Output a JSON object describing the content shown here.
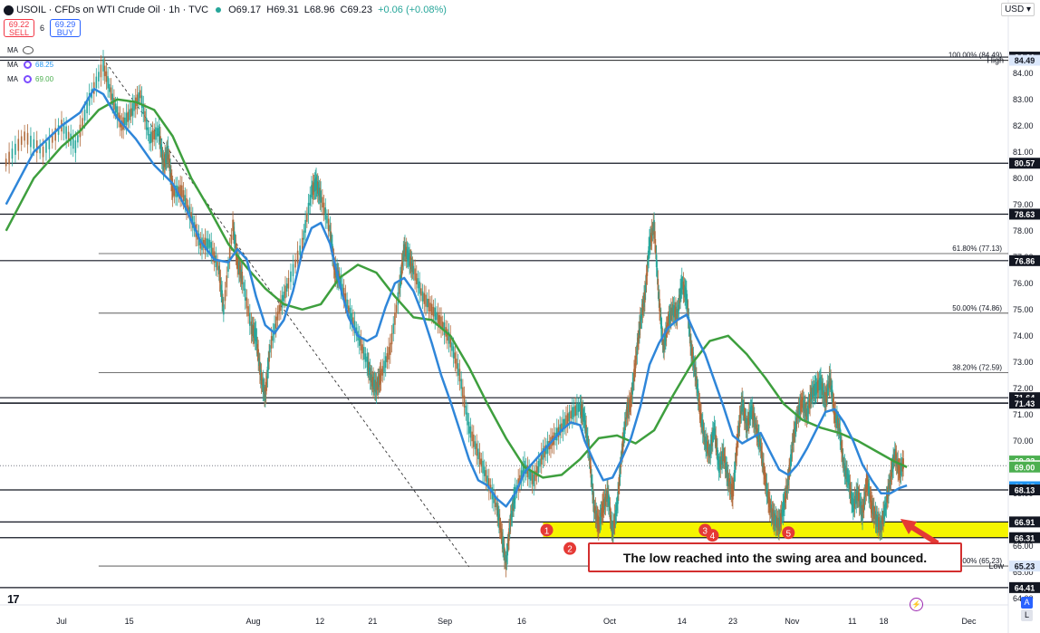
{
  "header": {
    "symbol": "USOIL · CFDs on WTI Crude Oil · 1h · TVC",
    "open": "O69.17",
    "high": "H69.31",
    "low": "L68.96",
    "close": "C69.23",
    "change": "+0.06 (+0.08%)"
  },
  "trade": {
    "sell_price": "69.22",
    "sell_label": "SELL",
    "spread": "6",
    "buy_price": "69.29",
    "buy_label": "BUY"
  },
  "indicators": [
    {
      "label": "MA",
      "value": ""
    },
    {
      "label": "MA",
      "value": "68.25",
      "color": "#2196f3"
    },
    {
      "label": "MA",
      "value": "69.00",
      "color": "#4caf50"
    }
  ],
  "currency": "USD",
  "callout": "The low reached into the swing area and bounced.",
  "tv_logo": "17",
  "auto_button": "A",
  "log_button": "L",
  "chart_data": {
    "type": "line",
    "ylim": [
      63.75,
      85.75
    ],
    "y_ticks": [
      64.0,
      65.0,
      66.0,
      67.0,
      68.0,
      69.0,
      70.0,
      71.0,
      72.0,
      73.0,
      74.0,
      75.0,
      76.0,
      77.0,
      78.0,
      79.0,
      80.0,
      81.0,
      82.0,
      83.0,
      84.0
    ],
    "x_ticks": [
      {
        "label": "Jul",
        "x": 0.0
      },
      {
        "label": "15",
        "x": 0.073
      },
      {
        "label": "Aug",
        "x": 0.207
      },
      {
        "label": "12",
        "x": 0.279
      },
      {
        "label": "21",
        "x": 0.336
      },
      {
        "label": "Sep",
        "x": 0.414
      },
      {
        "label": "16",
        "x": 0.497
      },
      {
        "label": "Oct",
        "x": 0.592
      },
      {
        "label": "14",
        "x": 0.67
      },
      {
        "label": "23",
        "x": 0.725
      },
      {
        "label": "Nov",
        "x": 0.789
      },
      {
        "label": "11",
        "x": 0.854
      },
      {
        "label": "18",
        "x": 0.888
      },
      {
        "label": "Dec",
        "x": 0.98
      }
    ],
    "price": [
      [
        -0.06,
        80.6
      ],
      [
        -0.04,
        81.6
      ],
      [
        -0.02,
        81.0
      ],
      [
        0.0,
        82.0
      ],
      [
        0.015,
        81.2
      ],
      [
        0.03,
        83.0
      ],
      [
        0.045,
        84.3
      ],
      [
        0.055,
        83.0
      ],
      [
        0.065,
        82.0
      ],
      [
        0.075,
        82.5
      ],
      [
        0.085,
        83.2
      ],
      [
        0.095,
        81.5
      ],
      [
        0.105,
        81.8
      ],
      [
        0.11,
        80.5
      ],
      [
        0.115,
        81.0
      ],
      [
        0.12,
        79.5
      ],
      [
        0.13,
        79.5
      ],
      [
        0.14,
        78.5
      ],
      [
        0.15,
        77.5
      ],
      [
        0.16,
        77.5
      ],
      [
        0.17,
        76.5
      ],
      [
        0.175,
        75.0
      ],
      [
        0.185,
        78.2
      ],
      [
        0.19,
        76.8
      ],
      [
        0.195,
        76.2
      ],
      [
        0.205,
        74.3
      ],
      [
        0.21,
        74.0
      ],
      [
        0.215,
        72.5
      ],
      [
        0.22,
        71.7
      ],
      [
        0.225,
        73.5
      ],
      [
        0.235,
        75.0
      ],
      [
        0.245,
        76.0
      ],
      [
        0.26,
        77.5
      ],
      [
        0.27,
        79.5
      ],
      [
        0.275,
        79.8
      ],
      [
        0.28,
        79.3
      ],
      [
        0.29,
        78.0
      ],
      [
        0.295,
        76.5
      ],
      [
        0.3,
        76.2
      ],
      [
        0.31,
        75.0
      ],
      [
        0.32,
        74.0
      ],
      [
        0.33,
        73.0
      ],
      [
        0.335,
        72.3
      ],
      [
        0.34,
        72.0
      ],
      [
        0.345,
        72.5
      ],
      [
        0.355,
        73.5
      ],
      [
        0.365,
        75.8
      ],
      [
        0.37,
        77.3
      ],
      [
        0.375,
        77.0
      ],
      [
        0.38,
        76.5
      ],
      [
        0.39,
        75.5
      ],
      [
        0.4,
        75.0
      ],
      [
        0.41,
        74.5
      ],
      [
        0.42,
        73.8
      ],
      [
        0.43,
        72.5
      ],
      [
        0.44,
        70.5
      ],
      [
        0.45,
        69.5
      ],
      [
        0.46,
        68.5
      ],
      [
        0.47,
        67.5
      ],
      [
        0.475,
        66.5
      ],
      [
        0.48,
        65.3
      ],
      [
        0.485,
        67.0
      ],
      [
        0.49,
        68.0
      ],
      [
        0.5,
        69.0
      ],
      [
        0.51,
        68.5
      ],
      [
        0.52,
        69.5
      ],
      [
        0.53,
        70.0
      ],
      [
        0.54,
        70.5
      ],
      [
        0.55,
        71.0
      ],
      [
        0.56,
        71.3
      ],
      [
        0.565,
        70.8
      ],
      [
        0.57,
        69.5
      ],
      [
        0.575,
        67.5
      ],
      [
        0.58,
        66.8
      ],
      [
        0.585,
        67.5
      ],
      [
        0.59,
        68.0
      ],
      [
        0.595,
        66.5
      ],
      [
        0.6,
        67.5
      ],
      [
        0.605,
        69.5
      ],
      [
        0.61,
        71.0
      ],
      [
        0.615,
        71.5
      ],
      [
        0.62,
        73.0
      ],
      [
        0.625,
        74.5
      ],
      [
        0.63,
        75.5
      ],
      [
        0.635,
        77.5
      ],
      [
        0.64,
        78.2
      ],
      [
        0.645,
        75.5
      ],
      [
        0.65,
        73.5
      ],
      [
        0.655,
        74.5
      ],
      [
        0.66,
        75.0
      ],
      [
        0.665,
        74.8
      ],
      [
        0.67,
        76.0
      ],
      [
        0.675,
        75.5
      ],
      [
        0.68,
        73.5
      ],
      [
        0.685,
        72.5
      ],
      [
        0.69,
        71.0
      ],
      [
        0.695,
        70.0
      ],
      [
        0.7,
        69.5
      ],
      [
        0.705,
        70.5
      ],
      [
        0.71,
        69.0
      ],
      [
        0.715,
        69.5
      ],
      [
        0.72,
        68.5
      ],
      [
        0.725,
        68.0
      ],
      [
        0.73,
        70.0
      ],
      [
        0.735,
        71.5
      ],
      [
        0.74,
        70.5
      ],
      [
        0.745,
        71.2
      ],
      [
        0.75,
        70.5
      ],
      [
        0.755,
        69.8
      ],
      [
        0.76,
        68.5
      ],
      [
        0.765,
        67.5
      ],
      [
        0.77,
        67.0
      ],
      [
        0.775,
        66.8
      ],
      [
        0.78,
        67.5
      ],
      [
        0.785,
        68.5
      ],
      [
        0.79,
        70.0
      ],
      [
        0.795,
        71.0
      ],
      [
        0.8,
        71.5
      ],
      [
        0.805,
        71.0
      ],
      [
        0.81,
        71.8
      ],
      [
        0.815,
        72.0
      ],
      [
        0.82,
        72.2
      ],
      [
        0.825,
        71.5
      ],
      [
        0.83,
        72.4
      ],
      [
        0.835,
        71.0
      ],
      [
        0.84,
        70.5
      ],
      [
        0.845,
        69.0
      ],
      [
        0.85,
        68.5
      ],
      [
        0.855,
        67.5
      ],
      [
        0.86,
        68.0
      ],
      [
        0.865,
        67.2
      ],
      [
        0.87,
        68.5
      ],
      [
        0.875,
        67.5
      ],
      [
        0.88,
        67.0
      ],
      [
        0.885,
        66.7
      ],
      [
        0.89,
        67.5
      ],
      [
        0.895,
        68.5
      ],
      [
        0.9,
        69.5
      ],
      [
        0.905,
        68.8
      ],
      [
        0.91,
        69.2
      ]
    ],
    "ma_blue": [
      [
        -0.06,
        79.0
      ],
      [
        -0.03,
        81.0
      ],
      [
        0.0,
        82.0
      ],
      [
        0.02,
        82.5
      ],
      [
        0.035,
        83.4
      ],
      [
        0.045,
        83.2
      ],
      [
        0.06,
        82.3
      ],
      [
        0.08,
        81.5
      ],
      [
        0.1,
        80.5
      ],
      [
        0.12,
        79.8
      ],
      [
        0.135,
        78.8
      ],
      [
        0.15,
        77.6
      ],
      [
        0.165,
        76.9
      ],
      [
        0.18,
        76.8
      ],
      [
        0.19,
        77.3
      ],
      [
        0.2,
        76.9
      ],
      [
        0.21,
        75.5
      ],
      [
        0.22,
        74.4
      ],
      [
        0.23,
        74.1
      ],
      [
        0.24,
        74.6
      ],
      [
        0.25,
        75.7
      ],
      [
        0.26,
        77.2
      ],
      [
        0.27,
        78.1
      ],
      [
        0.28,
        78.3
      ],
      [
        0.29,
        77.5
      ],
      [
        0.3,
        76.0
      ],
      [
        0.31,
        74.7
      ],
      [
        0.32,
        74.0
      ],
      [
        0.33,
        73.8
      ],
      [
        0.34,
        74.0
      ],
      [
        0.35,
        75.1
      ],
      [
        0.36,
        76.0
      ],
      [
        0.37,
        76.2
      ],
      [
        0.38,
        75.7
      ],
      [
        0.39,
        74.8
      ],
      [
        0.4,
        73.7
      ],
      [
        0.41,
        72.5
      ],
      [
        0.42,
        71.5
      ],
      [
        0.43,
        70.4
      ],
      [
        0.44,
        69.3
      ],
      [
        0.45,
        68.5
      ],
      [
        0.46,
        68.3
      ],
      [
        0.47,
        67.8
      ],
      [
        0.48,
        67.5
      ],
      [
        0.49,
        68.0
      ],
      [
        0.5,
        68.8
      ],
      [
        0.51,
        69.2
      ],
      [
        0.52,
        69.6
      ],
      [
        0.53,
        70.0
      ],
      [
        0.54,
        70.4
      ],
      [
        0.55,
        70.7
      ],
      [
        0.56,
        70.6
      ],
      [
        0.565,
        70.0
      ],
      [
        0.575,
        69.2
      ],
      [
        0.585,
        68.5
      ],
      [
        0.595,
        68.6
      ],
      [
        0.605,
        69.3
      ],
      [
        0.615,
        70.1
      ],
      [
        0.625,
        71.3
      ],
      [
        0.635,
        72.9
      ],
      [
        0.645,
        73.7
      ],
      [
        0.655,
        74.3
      ],
      [
        0.665,
        74.6
      ],
      [
        0.675,
        74.8
      ],
      [
        0.685,
        74.0
      ],
      [
        0.695,
        73.3
      ],
      [
        0.705,
        72.3
      ],
      [
        0.715,
        71.3
      ],
      [
        0.725,
        70.2
      ],
      [
        0.735,
        69.9
      ],
      [
        0.745,
        70.1
      ],
      [
        0.755,
        70.3
      ],
      [
        0.765,
        69.6
      ],
      [
        0.775,
        68.9
      ],
      [
        0.785,
        68.7
      ],
      [
        0.795,
        69.1
      ],
      [
        0.805,
        69.7
      ],
      [
        0.815,
        70.4
      ],
      [
        0.825,
        71.1
      ],
      [
        0.835,
        71.2
      ],
      [
        0.845,
        70.7
      ],
      [
        0.855,
        70.0
      ],
      [
        0.865,
        69.1
      ],
      [
        0.875,
        68.5
      ],
      [
        0.885,
        68.0
      ],
      [
        0.895,
        68.0
      ],
      [
        0.905,
        68.2
      ],
      [
        0.913,
        68.3
      ]
    ],
    "ma_green": [
      [
        -0.06,
        78.0
      ],
      [
        -0.03,
        80.0
      ],
      [
        0.0,
        81.2
      ],
      [
        0.02,
        81.8
      ],
      [
        0.04,
        82.6
      ],
      [
        0.06,
        83.0
      ],
      [
        0.08,
        82.9
      ],
      [
        0.1,
        82.6
      ],
      [
        0.12,
        81.6
      ],
      [
        0.14,
        80.0
      ],
      [
        0.16,
        78.8
      ],
      [
        0.18,
        77.5
      ],
      [
        0.2,
        76.6
      ],
      [
        0.22,
        75.8
      ],
      [
        0.24,
        75.2
      ],
      [
        0.26,
        75.0
      ],
      [
        0.28,
        75.2
      ],
      [
        0.3,
        76.2
      ],
      [
        0.32,
        76.7
      ],
      [
        0.34,
        76.4
      ],
      [
        0.36,
        75.5
      ],
      [
        0.38,
        74.7
      ],
      [
        0.4,
        74.6
      ],
      [
        0.42,
        74.0
      ],
      [
        0.44,
        72.8
      ],
      [
        0.46,
        71.4
      ],
      [
        0.48,
        70.1
      ],
      [
        0.5,
        69.0
      ],
      [
        0.52,
        68.6
      ],
      [
        0.54,
        68.7
      ],
      [
        0.56,
        69.3
      ],
      [
        0.58,
        70.1
      ],
      [
        0.6,
        70.2
      ],
      [
        0.62,
        69.9
      ],
      [
        0.64,
        70.4
      ],
      [
        0.66,
        71.7
      ],
      [
        0.68,
        72.9
      ],
      [
        0.7,
        73.8
      ],
      [
        0.72,
        74.0
      ],
      [
        0.74,
        73.3
      ],
      [
        0.76,
        72.4
      ],
      [
        0.78,
        71.4
      ],
      [
        0.8,
        70.8
      ],
      [
        0.82,
        70.5
      ],
      [
        0.84,
        70.3
      ],
      [
        0.86,
        70.0
      ],
      [
        0.88,
        69.6
      ],
      [
        0.9,
        69.2
      ],
      [
        0.913,
        69.0
      ]
    ],
    "trendline": [
      [
        0.048,
        84.4
      ],
      [
        0.44,
        65.2
      ]
    ],
    "fib_levels": [
      {
        "label": "100.00% (84.49)",
        "value": 84.49
      },
      {
        "label": "61.80% (77.13)",
        "value": 77.13
      },
      {
        "label": "50.00% (74.86)",
        "value": 74.86
      },
      {
        "label": "38.20% (72.59)",
        "value": 72.59
      },
      {
        "label": "0.00% (65.23)",
        "value": 65.23
      }
    ],
    "horizontal_levels": [
      84.61,
      84.49,
      80.57,
      78.63,
      76.86,
      71.64,
      71.44,
      71.43,
      68.13,
      66.91,
      66.31,
      64.41
    ],
    "swing_zone": {
      "from": 66.31,
      "to": 66.91,
      "color": "#f5f500"
    },
    "swing_points": [
      {
        "label": "1",
        "x": 0.524,
        "y": 66.6
      },
      {
        "label": "2",
        "x": 0.549,
        "y": 65.9
      },
      {
        "label": "3",
        "x": 0.695,
        "y": 66.6
      },
      {
        "label": "4",
        "x": 0.703,
        "y": 66.4
      },
      {
        "label": "5",
        "x": 0.785,
        "y": 66.5
      }
    ],
    "current_price": 69.05,
    "price_tags": [
      {
        "label": "84.61",
        "value": 84.61,
        "bg": "#131722",
        "fg": "#ffffff"
      },
      {
        "label": "84.49",
        "value": 84.49,
        "bg": "#dbe7fb",
        "fg": "#131722"
      },
      {
        "label": "80.57",
        "value": 80.57,
        "bg": "#131722",
        "fg": "#ffffff"
      },
      {
        "label": "78.63",
        "value": 78.63,
        "bg": "#131722",
        "fg": "#ffffff"
      },
      {
        "label": "76.86",
        "value": 76.86,
        "bg": "#131722",
        "fg": "#ffffff"
      },
      {
        "label": "71.64",
        "value": 71.64,
        "bg": "#131722",
        "fg": "#ffffff"
      },
      {
        "label": "71.44",
        "value": 71.44,
        "bg": "#131722",
        "fg": "#ffffff"
      },
      {
        "label": "71.43",
        "value": 71.43,
        "bg": "#131722",
        "fg": "#ffffff"
      },
      {
        "label": "69.23",
        "value": 69.23,
        "bg": "#4caf50",
        "fg": "#ffffff"
      },
      {
        "label": "69.05",
        "value": 69.05,
        "bg": "#ffffff",
        "fg": "#131722"
      },
      {
        "label": "69.00",
        "value": 69.0,
        "bg": "#4caf50",
        "fg": "#ffffff"
      },
      {
        "label": "68.25",
        "value": 68.25,
        "bg": "#2196f3",
        "fg": "#ffffff"
      },
      {
        "label": "68.13",
        "value": 68.13,
        "bg": "#131722",
        "fg": "#ffffff"
      },
      {
        "label": "66.91",
        "value": 66.91,
        "bg": "#131722",
        "fg": "#ffffff"
      },
      {
        "label": "66.31",
        "value": 66.31,
        "bg": "#131722",
        "fg": "#ffffff"
      },
      {
        "label": "65.23",
        "value": 65.23,
        "bg": "#dbe7fb",
        "fg": "#131722"
      },
      {
        "label": "64.41",
        "value": 64.41,
        "bg": "#131722",
        "fg": "#ffffff"
      }
    ],
    "high_label": "High",
    "low_label": "Low",
    "colors": {
      "ma_blue": "#2f86d9",
      "ma_green": "#3e9f3e",
      "candles_up": "#26a69a",
      "candles_down": "#b06a3b",
      "zone": "#f5f500",
      "marker": "#e53935"
    }
  }
}
